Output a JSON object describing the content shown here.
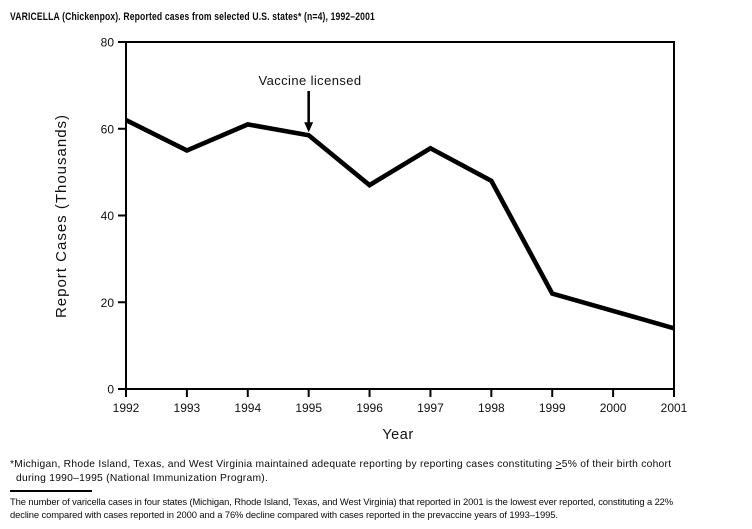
{
  "title": "VARICELLA (Chickenpox). Reported cases from selected U.S. states* (n=4), 1992–2001",
  "chart_data": {
    "type": "line",
    "x": [
      1992,
      1993,
      1994,
      1995,
      1996,
      1997,
      1998,
      1999,
      2000,
      2001
    ],
    "values": [
      62,
      55,
      61,
      58.5,
      47,
      55.5,
      48,
      22,
      18,
      14
    ],
    "xlabel": "Year",
    "ylabel": "Report Cases (Thousands)",
    "ylim": [
      0,
      80
    ],
    "yticks": [
      0,
      20,
      40,
      60,
      80
    ],
    "grid": "off",
    "legend": "none",
    "line_color": "#000000",
    "annotation": {
      "text": "Vaccine licensed",
      "x": 1995,
      "points_to_value": 58.5
    }
  },
  "footnotes": {
    "asterisk": {
      "line1_pre": "*Michigan, Rhode Island, Texas, and West Virginia maintained adequate reporting by reporting cases constituting ",
      "geq": ">",
      "line1_post": "5% of their birth cohort",
      "line2": "during 1990–1995 (National Immunization Program)."
    },
    "bottom": {
      "line1": "The number of varicella cases in four states (Michigan, Rhode Island, Texas, and West Virginia) that reported in 2001 is the lowest ever reported, constituting a 22%",
      "line2": "decline compared with cases reported in 2000 and a 76% decline compared with cases reported in the prevaccine years of 1993–1995."
    }
  }
}
